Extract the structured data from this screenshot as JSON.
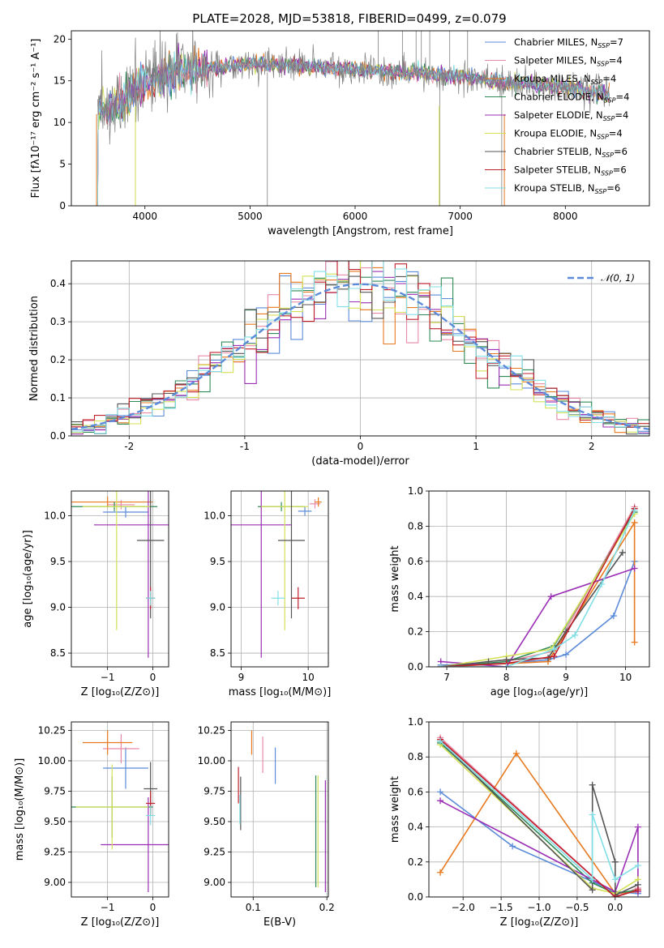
{
  "figure": {
    "title": "PLATE=2028, MJD=53818, FIBERID=0499, z=0.079"
  },
  "colors": {
    "Chabrier MILES": "#5b8bd9",
    "Salpeter MILES": "#e88aa6",
    "Kroupa MILES": "#e8791f",
    "Chabrier ELODIE": "#2e8b57",
    "Salpeter ELODIE": "#9b2fb5",
    "Kroupa ELODIE": "#d4e157",
    "Chabrier STELIB": "#555555",
    "Salpeter STELIB": "#c0202c",
    "Kroupa STELIB": "#80dfe6"
  },
  "chart_data": [
    {
      "id": "spectrum",
      "type": "line",
      "xlabel": "wavelength [Angstrom, rest frame]",
      "ylabel": "Flux [fλ10⁻¹⁷ erg cm⁻² s⁻¹ A⁻¹]",
      "xlim": [
        3300,
        8800
      ],
      "ylim": [
        0,
        21
      ],
      "xticks": [
        4000,
        5000,
        6000,
        7000,
        8000
      ],
      "yticks": [
        0,
        5,
        10,
        15,
        20
      ],
      "legend_position": "top-right",
      "legend": [
        {
          "label": "Chabrier MILES, N",
          "sub": "SSP",
          "tail": "=7",
          "model": "Chabrier MILES"
        },
        {
          "label": "Salpeter MILES, N",
          "sub": "SSP",
          "tail": "=4",
          "model": "Salpeter MILES"
        },
        {
          "label": "Kroupa MILES, N",
          "sub": "SSP",
          "tail": "=4",
          "model": "Kroupa MILES"
        },
        {
          "label": "Chabrier ELODIE, N",
          "sub": "SSP",
          "tail": "=4",
          "model": "Chabrier ELODIE"
        },
        {
          "label": "Salpeter ELODIE, N",
          "sub": "SSP",
          "tail": "=4",
          "model": "Salpeter ELODIE"
        },
        {
          "label": "Kroupa ELODIE, N",
          "sub": "SSP",
          "tail": "=4",
          "model": "Kroupa ELODIE"
        },
        {
          "label": "Chabrier STELIB, N",
          "sub": "SSP",
          "tail": "=6",
          "model": "Chabrier STELIB"
        },
        {
          "label": "Salpeter STELIB, N",
          "sub": "SSP",
          "tail": "=6",
          "model": "Salpeter STELIB"
        },
        {
          "label": "Kroupa STELIB, N",
          "sub": "SSP",
          "tail": "=6",
          "model": "Kroupa STELIB"
        }
      ],
      "continuum": [
        [
          3550,
          11.5
        ],
        [
          3800,
          12.5
        ],
        [
          4000,
          15.0
        ],
        [
          4300,
          16.0
        ],
        [
          4600,
          16.5
        ],
        [
          5000,
          17.0
        ],
        [
          5500,
          16.8
        ],
        [
          6000,
          16.3
        ],
        [
          6500,
          16.0
        ],
        [
          7000,
          15.5
        ],
        [
          7400,
          14.8
        ],
        [
          7800,
          14.5
        ],
        [
          8100,
          14.0
        ],
        [
          8400,
          13.3
        ]
      ]
    },
    {
      "id": "residuals",
      "type": "histogram",
      "xlabel": "(data-model)/error",
      "ylabel": "Normed distribution",
      "xlim": [
        -2.5,
        2.5
      ],
      "ylim": [
        0,
        0.46
      ],
      "xticks": [
        -2,
        -1,
        0,
        1,
        2
      ],
      "yticks": [
        0.0,
        0.1,
        0.2,
        0.3,
        0.4
      ],
      "grid": true,
      "legend_position": "top-right",
      "gaussian_label": "𝒩(0, 1)",
      "gaussian_color": "#5b8bd9",
      "bin_width": 0.1
    },
    {
      "id": "age-Z",
      "type": "errorbar",
      "xlabel": "Z [log₁₀(Z/Z⊙)]",
      "ylabel": "age  [log₁₀(age/yr)]",
      "xlim": [
        -1.8,
        0.35
      ],
      "ylim": [
        8.35,
        10.27
      ],
      "xticks": [
        -1,
        0
      ],
      "yticks": [
        8.5,
        9.0,
        9.5,
        10.0
      ],
      "grid": true,
      "points": [
        {
          "model": "Chabrier MILES",
          "x": -0.6,
          "xerr": 0.5,
          "y": 10.04,
          "yerr": 0.06
        },
        {
          "model": "Salpeter MILES",
          "x": -0.7,
          "xerr": 0.3,
          "y": 10.12,
          "yerr": 0.05
        },
        {
          "model": "Kroupa MILES",
          "x": -1.0,
          "xerr": 1.0,
          "y": 10.15,
          "yerr": 0.06
        },
        {
          "model": "Chabrier ELODIE",
          "x": -0.85,
          "xerr": 0.95,
          "y": 10.1,
          "yerr": 0.05
        },
        {
          "model": "Salpeter ELODIE",
          "x": -0.1,
          "xerr": 1.2,
          "y": 9.9,
          "yerr": 1.45
        },
        {
          "model": "Kroupa ELODIE",
          "x": -0.8,
          "xerr": 0.75,
          "y": 10.1,
          "yerr": 1.35
        },
        {
          "model": "Chabrier STELIB",
          "x": -0.05,
          "xerr": 0.3,
          "y": 9.73,
          "yerr": 0.85
        },
        {
          "model": "Salpeter STELIB",
          "x": -0.05,
          "xerr": 0.1,
          "y": 9.1,
          "yerr": 0.12
        },
        {
          "model": "Kroupa STELIB",
          "x": -0.05,
          "xerr": 0.1,
          "y": 9.1,
          "yerr": 0.08
        }
      ]
    },
    {
      "id": "age-mass",
      "type": "errorbar",
      "xlabel": "mass [log₁₀(M/M⊙)]",
      "ylabel": "",
      "xlim": [
        8.85,
        10.3
      ],
      "ylim": [
        8.35,
        10.27
      ],
      "xticks": [
        9,
        10
      ],
      "yticks": [
        8.5,
        9.0,
        9.5,
        10.0
      ],
      "grid": true,
      "points": [
        {
          "model": "Chabrier MILES",
          "x": 9.95,
          "xerr": 0.1,
          "y": 10.05,
          "yerr": 0.05
        },
        {
          "model": "Salpeter MILES",
          "x": 10.1,
          "xerr": 0.08,
          "y": 10.13,
          "yerr": 0.05
        },
        {
          "model": "Kroupa MILES",
          "x": 10.15,
          "xerr": 0.05,
          "y": 10.15,
          "yerr": 0.05
        },
        {
          "model": "Chabrier ELODIE",
          "x": 9.6,
          "xerr": 0.35,
          "y": 10.1,
          "yerr": 0.05
        },
        {
          "model": "Salpeter ELODIE",
          "x": 9.3,
          "xerr": 0.45,
          "y": 9.9,
          "yerr": 1.45
        },
        {
          "model": "Kroupa ELODIE",
          "x": 9.65,
          "xerr": 0.35,
          "y": 10.1,
          "yerr": 1.35
        },
        {
          "model": "Chabrier STELIB",
          "x": 9.75,
          "xerr": 0.2,
          "y": 9.73,
          "yerr": 0.85
        },
        {
          "model": "Salpeter STELIB",
          "x": 9.85,
          "xerr": 0.1,
          "y": 9.1,
          "yerr": 0.12
        },
        {
          "model": "Kroupa STELIB",
          "x": 9.55,
          "xerr": 0.1,
          "y": 9.1,
          "yerr": 0.08
        }
      ]
    },
    {
      "id": "weight-age",
      "type": "line",
      "xlabel": "age  [log₁₀(age/yr)]",
      "ylabel": "mass weight",
      "xlim": [
        6.7,
        10.4
      ],
      "ylim": [
        0,
        1.0
      ],
      "xticks": [
        7,
        8,
        9,
        10
      ],
      "yticks": [
        0.0,
        0.2,
        0.4,
        0.6,
        0.8,
        1.0
      ],
      "grid": true,
      "series": [
        {
          "model": "Chabrier MILES",
          "x": [
            6.9,
            8.0,
            8.7,
            9.0,
            9.8,
            10.15
          ],
          "y": [
            0.01,
            0.02,
            0.04,
            0.07,
            0.29,
            0.6
          ]
        },
        {
          "model": "Salpeter MILES",
          "x": [
            6.9,
            8.0,
            8.8,
            10.15
          ],
          "y": [
            0.0,
            0.03,
            0.09,
            0.91
          ]
        },
        {
          "model": "Kroupa MILES",
          "x": [
            6.9,
            8.7,
            10.15,
            10.15
          ],
          "y": [
            0.0,
            0.03,
            0.82,
            0.14
          ]
        },
        {
          "model": "Chabrier ELODIE",
          "x": [
            6.9,
            8.0,
            8.8,
            10.15
          ],
          "y": [
            0.0,
            0.03,
            0.12,
            0.88
          ]
        },
        {
          "model": "Salpeter ELODIE",
          "x": [
            6.9,
            8.0,
            8.75,
            10.15
          ],
          "y": [
            0.03,
            0.0,
            0.4,
            0.56
          ]
        },
        {
          "model": "Kroupa ELODIE",
          "x": [
            6.9,
            8.0,
            8.75,
            10.15
          ],
          "y": [
            0.0,
            0.06,
            0.1,
            0.87
          ]
        },
        {
          "model": "Chabrier STELIB",
          "x": [
            6.9,
            7.7,
            8.0,
            8.7,
            9.0,
            9.95
          ],
          "y": [
            0.0,
            0.03,
            0.04,
            0.05,
            0.2,
            0.65
          ]
        },
        {
          "model": "Salpeter STELIB",
          "x": [
            6.9,
            8.0,
            8.8,
            10.15
          ],
          "y": [
            0.0,
            0.02,
            0.06,
            0.9
          ]
        },
        {
          "model": "Kroupa STELIB",
          "x": [
            6.9,
            8.0,
            8.8,
            9.15,
            9.6,
            10.15
          ],
          "y": [
            0.0,
            0.0,
            0.1,
            0.18,
            0.47,
            0.89
          ]
        }
      ]
    },
    {
      "id": "mass-Z",
      "type": "errorbar",
      "xlabel": "Z [log₁₀(Z/Z⊙)]",
      "ylabel": "mass [log₁₀(M/M⊙)]",
      "xlim": [
        -1.8,
        0.35
      ],
      "ylim": [
        8.88,
        10.32
      ],
      "xticks": [
        -1,
        0
      ],
      "yticks": [
        9.0,
        9.25,
        9.5,
        9.75,
        10.0,
        10.25
      ],
      "grid": true,
      "points": [
        {
          "model": "Chabrier MILES",
          "x": -0.6,
          "xerr": 0.5,
          "y": 9.94,
          "yerr": 0.17
        },
        {
          "model": "Salpeter MILES",
          "x": -0.7,
          "xerr": 0.4,
          "y": 10.1,
          "yerr": 0.12
        },
        {
          "model": "Kroupa MILES",
          "x": -1.0,
          "xerr": 0.55,
          "y": 10.15,
          "yerr": 0.1
        },
        {
          "model": "Chabrier ELODIE",
          "x": -0.9,
          "xerr": 0.9,
          "y": 9.62,
          "yerr": 0.25
        },
        {
          "model": "Salpeter ELODIE",
          "x": -0.1,
          "xerr": 1.05,
          "y": 9.31,
          "yerr": 0.39
        },
        {
          "model": "Kroupa ELODIE",
          "x": -0.9,
          "xerr": 0.8,
          "y": 9.62,
          "yerr": 0.35
        },
        {
          "model": "Chabrier STELIB",
          "x": -0.05,
          "xerr": 0.15,
          "y": 9.77,
          "yerr": 0.22
        },
        {
          "model": "Salpeter STELIB",
          "x": -0.05,
          "xerr": 0.1,
          "y": 9.65,
          "yerr": 0.1
        },
        {
          "model": "Kroupa STELIB",
          "x": -0.05,
          "xerr": 0.1,
          "y": 9.55,
          "yerr": 0.08
        }
      ]
    },
    {
      "id": "mass-ebv",
      "type": "errorbar",
      "xlabel": "E(B-V)",
      "ylabel": "",
      "xlim": [
        0.07,
        0.202
      ],
      "ylim": [
        8.88,
        10.32
      ],
      "xticks": [
        0.1,
        0.2
      ],
      "yticks": [
        9.0,
        9.25,
        9.5,
        9.75,
        10.0,
        10.25
      ],
      "grid": true,
      "points": [
        {
          "model": "Chabrier MILES",
          "x": 0.13,
          "xerr": 0.0,
          "y": 9.96,
          "yerr": 0.15
        },
        {
          "model": "Salpeter MILES",
          "x": 0.113,
          "xerr": 0.0,
          "y": 10.05,
          "yerr": 0.15
        },
        {
          "model": "Kroupa MILES",
          "x": 0.098,
          "xerr": 0.0,
          "y": 10.15,
          "yerr": 0.1
        },
        {
          "model": "Chabrier ELODIE",
          "x": 0.185,
          "xerr": 0.0,
          "y": 9.42,
          "yerr": 0.46
        },
        {
          "model": "Salpeter ELODIE",
          "x": 0.198,
          "xerr": 0.0,
          "y": 9.38,
          "yerr": 0.46
        },
        {
          "model": "Kroupa ELODIE",
          "x": 0.188,
          "xerr": 0.0,
          "y": 9.42,
          "yerr": 0.46
        },
        {
          "model": "Chabrier STELIB",
          "x": 0.083,
          "xerr": 0.0,
          "y": 9.65,
          "yerr": 0.22
        },
        {
          "model": "Salpeter STELIB",
          "x": 0.08,
          "xerr": 0.0,
          "y": 9.8,
          "yerr": 0.15
        },
        {
          "model": "Kroupa STELIB",
          "x": 0.082,
          "xerr": 0.0,
          "y": 9.6,
          "yerr": 0.12
        }
      ]
    },
    {
      "id": "weight-Z",
      "type": "line",
      "xlabel": "Z [log₁₀(Z/Z⊙)]",
      "ylabel": "mass weight",
      "xlim": [
        -2.45,
        0.45
      ],
      "ylim": [
        0,
        1.0
      ],
      "xticks": [
        -2.0,
        -1.5,
        -1.0,
        -0.5,
        0.0
      ],
      "yticks": [
        0.0,
        0.2,
        0.4,
        0.6,
        0.8,
        1.0
      ],
      "grid": true,
      "series": [
        {
          "model": "Chabrier MILES",
          "x": [
            -2.3,
            -1.35,
            0.0,
            0.3
          ],
          "y": [
            0.6,
            0.29,
            0.03,
            0.02
          ]
        },
        {
          "model": "Salpeter MILES",
          "x": [
            -2.3,
            0.0,
            0.3
          ],
          "y": [
            0.91,
            0.0,
            0.05
          ]
        },
        {
          "model": "Kroupa MILES",
          "x": [
            -2.3,
            -1.3,
            0.0,
            0.3
          ],
          "y": [
            0.14,
            0.82,
            0.02,
            0.03
          ]
        },
        {
          "model": "Chabrier ELODIE",
          "x": [
            -2.3,
            -0.3,
            0.0,
            0.3
          ],
          "y": [
            0.88,
            0.08,
            0.02,
            0.04
          ]
        },
        {
          "model": "Salpeter ELODIE",
          "x": [
            -2.3,
            0.0,
            0.3,
            0.3
          ],
          "y": [
            0.55,
            0.03,
            0.4,
            0.03
          ]
        },
        {
          "model": "Kroupa ELODIE",
          "x": [
            -2.3,
            -0.3,
            0.0,
            0.3
          ],
          "y": [
            0.87,
            0.05,
            0.02,
            0.1
          ]
        },
        {
          "model": "Chabrier STELIB",
          "x": [
            -2.3,
            -0.3,
            -0.3,
            0.0,
            0.0,
            0.3
          ],
          "y": [
            0.89,
            0.04,
            0.64,
            0.2,
            0.01,
            0.07
          ]
        },
        {
          "model": "Salpeter STELIB",
          "x": [
            -2.3,
            0.0,
            0.3
          ],
          "y": [
            0.9,
            0.0,
            0.04
          ]
        },
        {
          "model": "Kroupa STELIB",
          "x": [
            -2.3,
            -0.3,
            -0.3,
            0.0,
            0.3
          ],
          "y": [
            0.89,
            0.1,
            0.47,
            0.1,
            0.18
          ]
        }
      ]
    }
  ]
}
